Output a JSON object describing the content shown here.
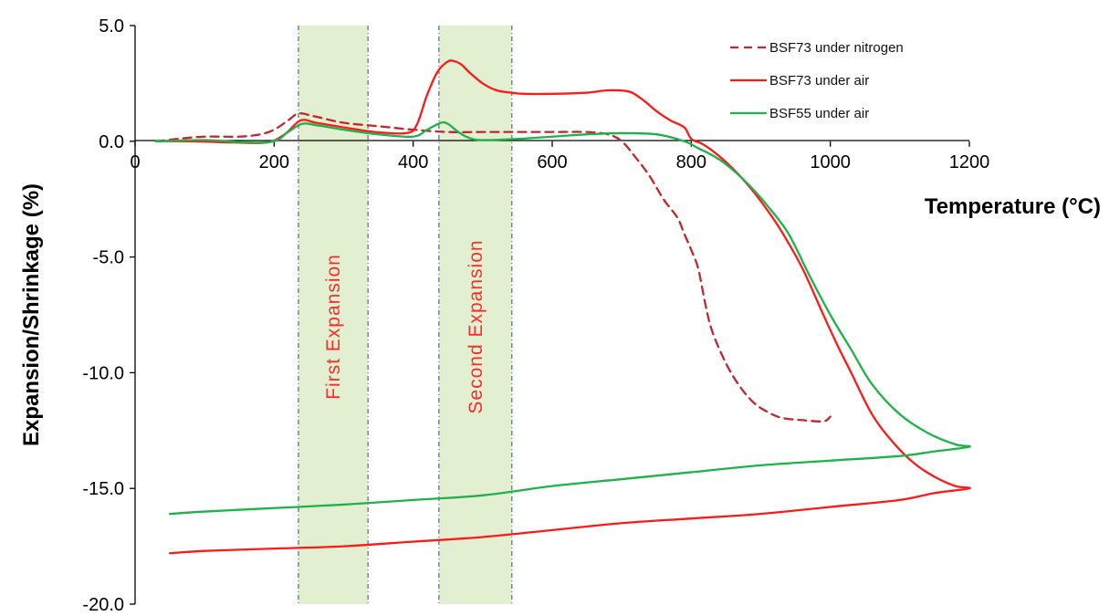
{
  "chart_data": {
    "type": "line",
    "xlabel": "Temperature (°C)",
    "ylabel": "Expansion/Shrinkage (%)",
    "xlim": [
      0,
      1200
    ],
    "ylim": [
      -20,
      5
    ],
    "x_ticks": [
      "0",
      "200",
      "400",
      "600",
      "800",
      "1000",
      "1200"
    ],
    "y_ticks": [
      "5.0",
      "0.0",
      "-5.0",
      "-10.0",
      "-15.0",
      "-20.0"
    ],
    "grid": false,
    "legend_position": "top-right",
    "bands": [
      {
        "label": "First Expansion",
        "x_start": 235,
        "x_end": 335,
        "color": "#e2efd0",
        "text_color": "#ff2a2a"
      },
      {
        "label": "Second Expansion",
        "x_start": 437,
        "x_end": 542,
        "color": "#e2efd0",
        "text_color": "#ff2a2a"
      }
    ],
    "series": [
      {
        "name": "BSF73 under nitrogen",
        "color": "#c0282d",
        "dash": true,
        "x": [
          30,
          60,
          100,
          150,
          180,
          200,
          220,
          235,
          255,
          300,
          350,
          400,
          450,
          500,
          550,
          600,
          650,
          680,
          700,
          720,
          740,
          760,
          780,
          790,
          800,
          810,
          820,
          830,
          850,
          870,
          890,
          910,
          930,
          960,
          990,
          1000
        ],
        "y": [
          0.0,
          0.1,
          0.2,
          0.2,
          0.3,
          0.5,
          0.9,
          1.2,
          1.1,
          0.8,
          0.65,
          0.5,
          0.4,
          0.4,
          0.4,
          0.4,
          0.4,
          0.3,
          0.0,
          -0.7,
          -1.5,
          -2.5,
          -3.3,
          -4.0,
          -4.7,
          -5.5,
          -7.0,
          -8.2,
          -9.6,
          -10.6,
          -11.3,
          -11.7,
          -11.95,
          -12.05,
          -12.1,
          -11.9
        ]
      },
      {
        "name": "BSF73 under air",
        "color": "#ff1a1a",
        "dash": false,
        "x": [
          30,
          80,
          140,
          190,
          215,
          238,
          260,
          300,
          345,
          390,
          405,
          420,
          435,
          450,
          460,
          470,
          480,
          500,
          520,
          540,
          560,
          600,
          650,
          680,
          710,
          730,
          750,
          770,
          790,
          800,
          815,
          830,
          850,
          870,
          890,
          910,
          930,
          960,
          990,
          1010,
          1030,
          1060,
          1090,
          1120,
          1150,
          1180,
          1200,
          1150,
          1100,
          1000,
          900,
          800,
          700,
          600,
          500,
          400,
          300,
          200,
          100,
          50
        ],
        "y": [
          0.0,
          0.0,
          -0.05,
          -0.05,
          0.3,
          0.9,
          0.8,
          0.6,
          0.4,
          0.35,
          0.7,
          2.0,
          3.0,
          3.45,
          3.45,
          3.3,
          3.0,
          2.5,
          2.2,
          2.1,
          2.05,
          2.05,
          2.1,
          2.2,
          2.15,
          1.8,
          1.3,
          0.9,
          0.6,
          0.1,
          -0.1,
          -0.4,
          -0.9,
          -1.5,
          -2.2,
          -3.0,
          -3.9,
          -5.5,
          -7.5,
          -8.8,
          -10.0,
          -11.8,
          -13.0,
          -13.9,
          -14.5,
          -14.9,
          -15.0,
          -15.2,
          -15.5,
          -15.8,
          -16.1,
          -16.3,
          -16.5,
          -16.8,
          -17.1,
          -17.3,
          -17.5,
          -17.6,
          -17.7,
          -17.8
        ]
      },
      {
        "name": "BSF55 under air",
        "color": "#1fb24a",
        "dash": false,
        "x": [
          30,
          100,
          160,
          200,
          220,
          240,
          260,
          300,
          350,
          400,
          420,
          440,
          450,
          465,
          480,
          500,
          550,
          600,
          650,
          700,
          750,
          790,
          810,
          830,
          850,
          880,
          910,
          940,
          970,
          1000,
          1030,
          1060,
          1100,
          1140,
          1180,
          1200,
          1150,
          1100,
          1000,
          900,
          800,
          700,
          600,
          500,
          400,
          300,
          200,
          100,
          50
        ],
        "y": [
          0.0,
          0.05,
          -0.05,
          0.0,
          0.4,
          0.75,
          0.7,
          0.5,
          0.3,
          0.2,
          0.5,
          0.8,
          0.75,
          0.4,
          0.15,
          0.05,
          0.1,
          0.2,
          0.3,
          0.35,
          0.3,
          0.0,
          -0.3,
          -0.6,
          -1.0,
          -1.8,
          -2.8,
          -4.0,
          -5.8,
          -7.5,
          -9.0,
          -10.5,
          -11.8,
          -12.6,
          -13.1,
          -13.2,
          -13.4,
          -13.6,
          -13.8,
          -14.0,
          -14.3,
          -14.6,
          -14.9,
          -15.3,
          -15.5,
          -15.7,
          -15.85,
          -16.0,
          -16.1
        ]
      }
    ]
  }
}
